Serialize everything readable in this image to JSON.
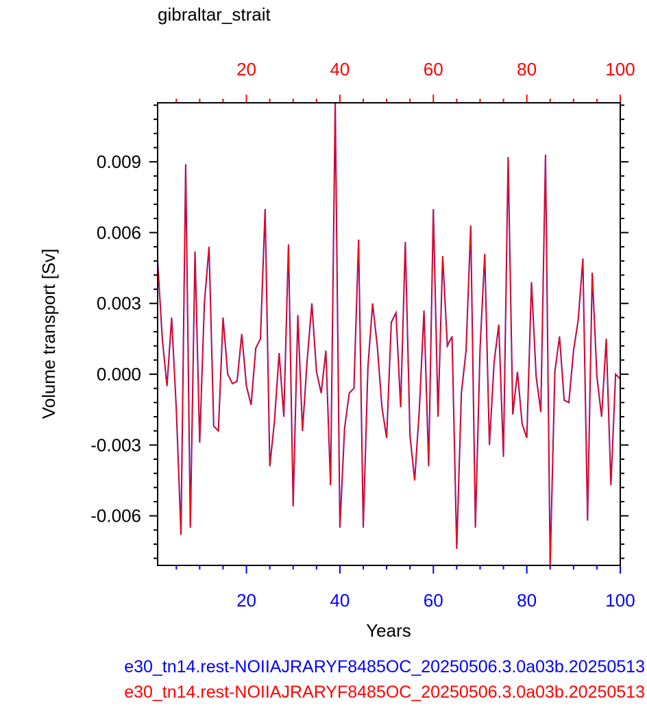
{
  "chart_data": {
    "type": "line",
    "title": "gibraltar_strait",
    "xlabel": "Years",
    "ylabel": "Volume transport [Sv]",
    "xlim": [
      1,
      100
    ],
    "ylim": [
      -0.0081,
      0.0115
    ],
    "x_ticks_major": [
      20,
      40,
      60,
      80,
      100
    ],
    "x_tick_labels": [
      "20",
      "40",
      "60",
      "80",
      "100"
    ],
    "y_ticks_major": [
      -0.006,
      -0.003,
      0.0,
      0.003,
      0.006,
      0.009
    ],
    "y_tick_labels": [
      "-0.006",
      "-0.003",
      "0.000",
      "0.003",
      "0.006",
      "0.009"
    ],
    "grid": false,
    "colors": {
      "bottom_axis": "#0000ff",
      "top_axis": "#ff0000",
      "series1": "#0000ff",
      "series2": "#ff0000"
    },
    "series": [
      {
        "name": "e30_tn14.rest-NOIIAJRARYF8485OC_20250506.3.0a03b.20250513",
        "color": "#0000ff",
        "x": [
          1,
          2,
          3,
          4,
          5,
          6,
          7,
          8,
          9,
          10,
          11,
          12,
          13,
          14,
          15,
          16,
          17,
          18,
          19,
          20,
          21,
          22,
          23,
          24,
          25,
          26,
          27,
          28,
          29,
          30,
          31,
          32,
          33,
          34,
          35,
          36,
          37,
          38,
          39,
          40,
          41,
          42,
          43,
          44,
          45,
          46,
          47,
          48,
          49,
          50,
          51,
          52,
          53,
          54,
          55,
          56,
          57,
          58,
          59,
          60,
          61,
          62,
          63,
          64,
          65,
          66,
          67,
          68,
          69,
          70,
          71,
          72,
          73,
          74,
          75,
          76,
          77,
          78,
          79,
          80,
          81,
          82,
          83,
          84,
          85,
          86,
          87,
          88,
          89,
          90,
          91,
          92,
          93,
          94,
          95,
          96,
          97,
          98,
          99,
          100
        ],
        "y": [
          0.0048,
          0.0015,
          -0.0005,
          0.0024,
          -0.0015,
          -0.0068,
          0.0089,
          -0.0065,
          0.0052,
          -0.0029,
          0.003,
          0.0054,
          -0.0022,
          -0.0024,
          0.0024,
          0.0,
          -0.0004,
          -0.0003,
          0.0017,
          -0.0005,
          -0.0013,
          0.0011,
          0.0015,
          0.007,
          -0.0039,
          -0.002,
          0.0009,
          -0.0018,
          0.0055,
          -0.0056,
          0.0025,
          -0.0024,
          0.0006,
          0.003,
          0.0001,
          -0.0008,
          0.001,
          -0.0047,
          0.0115,
          -0.0065,
          -0.0023,
          -0.0008,
          -0.0006,
          0.0057,
          -0.0065,
          0.0003,
          0.003,
          0.0012,
          -0.0014,
          -0.0027,
          0.0022,
          0.0026,
          -0.0014,
          0.0056,
          -0.0026,
          -0.0045,
          -0.0015,
          0.0027,
          -0.0039,
          0.007,
          -0.0018,
          0.005,
          0.0012,
          0.0016,
          -0.0074,
          -0.0008,
          0.001,
          0.0063,
          -0.0065,
          0.0011,
          0.0051,
          -0.003,
          0.0005,
          0.0021,
          -0.0035,
          0.0092,
          -0.0017,
          0.0001,
          -0.0021,
          -0.0027,
          0.0039,
          -0.0001,
          -0.0016,
          0.0093,
          -0.0081,
          0.0001,
          0.0016,
          -0.0011,
          -0.0012,
          0.001,
          0.0023,
          0.0049,
          -0.0062,
          0.0043,
          -0.0001,
          -0.0018,
          0.0015,
          -0.0047,
          0.0,
          -0.0002
        ]
      },
      {
        "name": "e30_tn14.rest-NOIIAJRARYF8485OC_20250506.3.0a03b.20250513",
        "color": "#ff0000",
        "x": [
          1,
          2,
          3,
          4,
          5,
          6,
          7,
          8,
          9,
          10,
          11,
          12,
          13,
          14,
          15,
          16,
          17,
          18,
          19,
          20,
          21,
          22,
          23,
          24,
          25,
          26,
          27,
          28,
          29,
          30,
          31,
          32,
          33,
          34,
          35,
          36,
          37,
          38,
          39,
          40,
          41,
          42,
          43,
          44,
          45,
          46,
          47,
          48,
          49,
          50,
          51,
          52,
          53,
          54,
          55,
          56,
          57,
          58,
          59,
          60,
          61,
          62,
          63,
          64,
          65,
          66,
          67,
          68,
          69,
          70,
          71,
          72,
          73,
          74,
          75,
          76,
          77,
          78,
          79,
          80,
          81,
          82,
          83,
          84,
          85,
          86,
          87,
          88,
          89,
          90,
          91,
          92,
          93,
          94,
          95,
          96,
          97,
          98,
          99,
          100
        ],
        "y": [
          0.0048,
          0.0015,
          -0.0005,
          0.0024,
          -0.0015,
          -0.0068,
          0.0089,
          -0.0065,
          0.0052,
          -0.0029,
          0.003,
          0.0054,
          -0.0022,
          -0.0024,
          0.0024,
          0.0,
          -0.0004,
          -0.0003,
          0.0017,
          -0.0005,
          -0.0013,
          0.0011,
          0.0015,
          0.007,
          -0.0039,
          -0.002,
          0.0009,
          -0.0018,
          0.0055,
          -0.0056,
          0.0025,
          -0.0024,
          0.0006,
          0.003,
          0.0001,
          -0.0008,
          0.001,
          -0.0047,
          0.0115,
          -0.0065,
          -0.0023,
          -0.0008,
          -0.0006,
          0.0057,
          -0.0065,
          0.0003,
          0.003,
          0.0012,
          -0.0014,
          -0.0027,
          0.0022,
          0.0026,
          -0.0014,
          0.0056,
          -0.0026,
          -0.0045,
          -0.0015,
          0.0027,
          -0.0039,
          0.007,
          -0.0018,
          0.005,
          0.0012,
          0.0016,
          -0.0074,
          -0.0008,
          0.001,
          0.0063,
          -0.0065,
          0.0011,
          0.0051,
          -0.003,
          0.0005,
          0.0021,
          -0.0035,
          0.0092,
          -0.0017,
          0.0001,
          -0.0021,
          -0.0027,
          0.0039,
          -0.0001,
          -0.0016,
          0.0093,
          -0.0081,
          0.0001,
          0.0016,
          -0.0011,
          -0.0012,
          0.001,
          0.0023,
          0.0049,
          -0.0062,
          0.0043,
          -0.0001,
          -0.0018,
          0.0015,
          -0.0047,
          0.0,
          -0.0002
        ]
      }
    ]
  }
}
